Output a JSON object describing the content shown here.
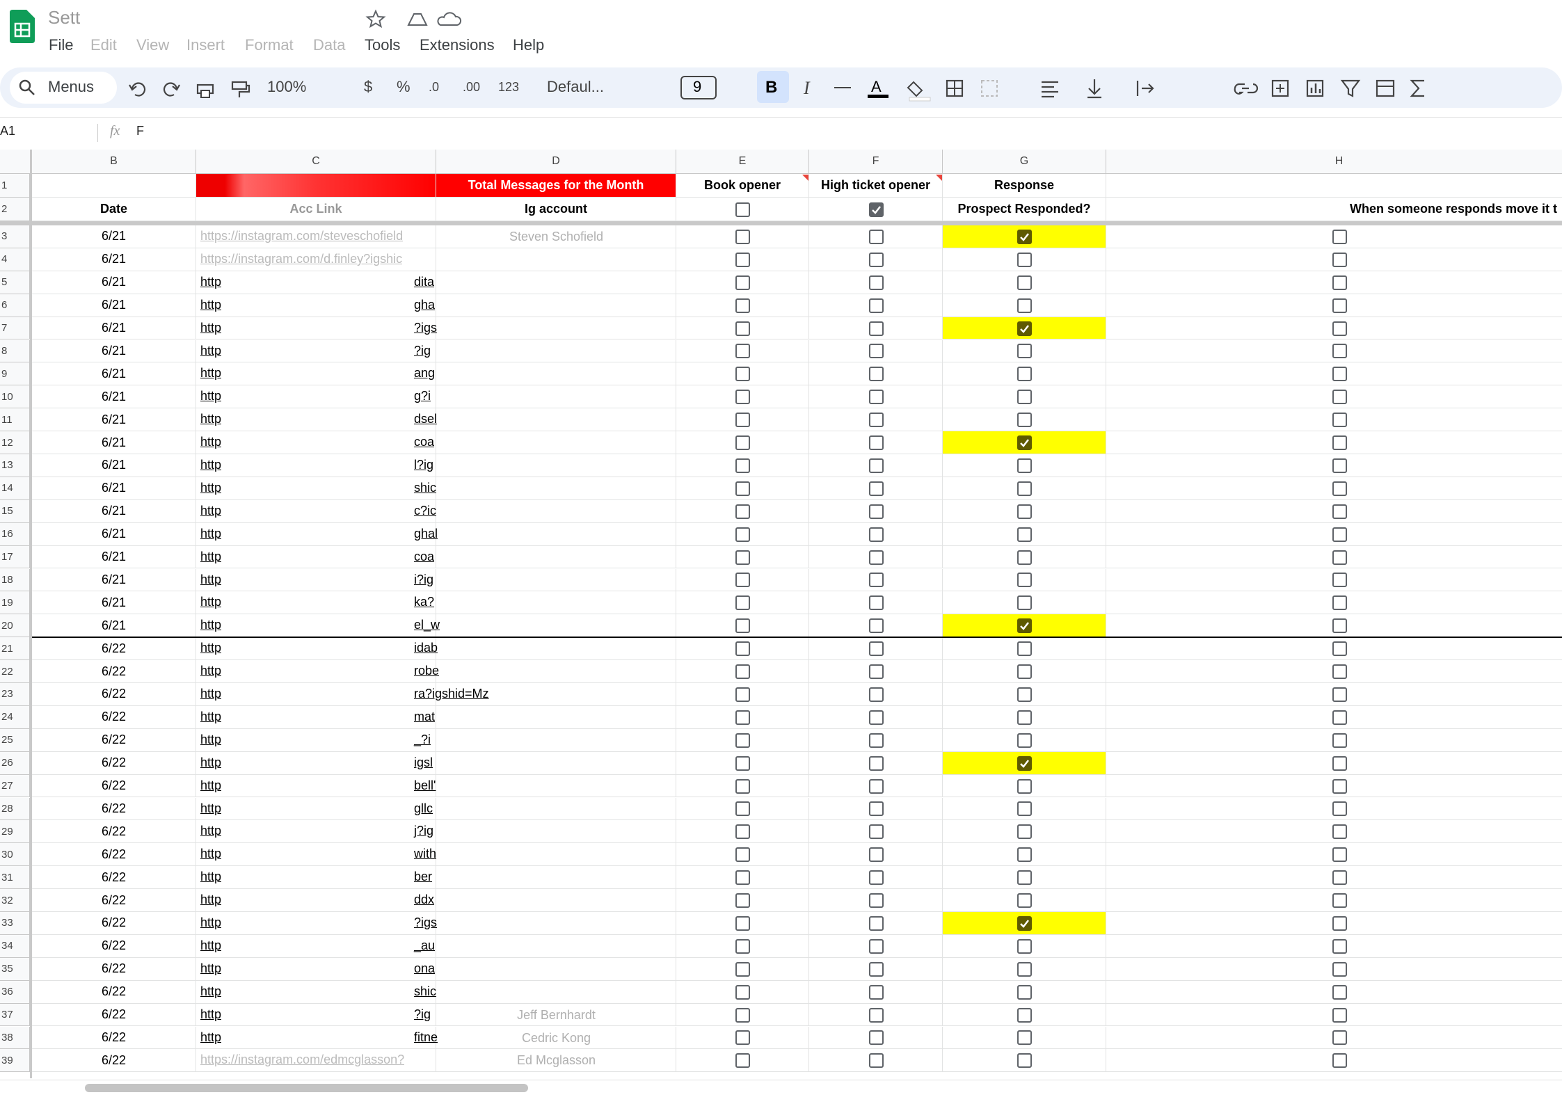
{
  "header": {
    "title": "Sett",
    "menus": [
      "File",
      "Edit",
      "View",
      "Insert",
      "Format",
      "Data",
      "Tools",
      "Extensions",
      "Help"
    ]
  },
  "toolbar": {
    "search": "Menus",
    "zoom": "100%",
    "currency": "$",
    "percent": "%",
    "decrease_decimal": ".0",
    "increase_decimal": ".00",
    "number_format": "123",
    "font": "Defaul...",
    "font_size": "9",
    "bold": "B",
    "italic": "I",
    "text_color": "A"
  },
  "formula_bar": {
    "cell": "A1",
    "fx": "fx",
    "content": "F"
  },
  "sheet": {
    "columns": [
      "B",
      "C",
      "D",
      "E",
      "F",
      "G",
      "H"
    ],
    "row1": {
      "number": 1,
      "D": "Total Messages for the Month",
      "E": "Book opener",
      "F": "High ticket opener",
      "G": "Response"
    },
    "row2": {
      "number": 2,
      "B": "Date",
      "C": "Acc Link",
      "D": "Ig account",
      "E": false,
      "F": true,
      "G": "Prospect Responded?",
      "H": "When someone responds move it t"
    },
    "rows": [
      {
        "number": 3,
        "date": "6/21",
        "link": "https://instagram.com/steveschofield",
        "name": "Steven Schofield",
        "book": false,
        "high": false,
        "responded": true,
        "moved": false
      },
      {
        "number": 4,
        "date": "6/21",
        "link": "https://instagram.com/d.finley?igshic",
        "book": false,
        "high": false,
        "responded": false,
        "moved": false
      },
      {
        "number": 5,
        "date": "6/21",
        "link": "http",
        "link_end": "dita",
        "book": false,
        "high": false,
        "responded": false,
        "moved": false
      },
      {
        "number": 6,
        "date": "6/21",
        "link": "http",
        "link_end": "gha",
        "book": false,
        "high": false,
        "responded": false,
        "moved": false
      },
      {
        "number": 7,
        "date": "6/21",
        "link": "http",
        "link_end": "?igs",
        "book": false,
        "high": false,
        "responded": true,
        "moved": false
      },
      {
        "number": 8,
        "date": "6/21",
        "link": "http",
        "link_end": "?ig",
        "book": false,
        "high": false,
        "responded": false,
        "moved": false
      },
      {
        "number": 9,
        "date": "6/21",
        "link": "http",
        "link_end": "ang",
        "book": false,
        "high": false,
        "responded": false,
        "moved": false
      },
      {
        "number": 10,
        "date": "6/21",
        "link": "http",
        "link_end": "g?i",
        "book": false,
        "high": false,
        "responded": false,
        "moved": false
      },
      {
        "number": 11,
        "date": "6/21",
        "link": "http",
        "link_end": "dsel",
        "book": false,
        "high": false,
        "responded": false,
        "moved": false
      },
      {
        "number": 12,
        "date": "6/21",
        "link": "http",
        "link_end": "coa",
        "book": false,
        "high": false,
        "responded": true,
        "moved": false
      },
      {
        "number": 13,
        "date": "6/21",
        "link": "http",
        "link_end": "l?ig",
        "book": false,
        "high": false,
        "responded": false,
        "moved": false
      },
      {
        "number": 14,
        "date": "6/21",
        "link": "http",
        "link_end": "shic",
        "book": false,
        "high": false,
        "responded": false,
        "moved": false
      },
      {
        "number": 15,
        "date": "6/21",
        "link": "http",
        "link_end": "c?ic",
        "book": false,
        "high": false,
        "responded": false,
        "moved": false
      },
      {
        "number": 16,
        "date": "6/21",
        "link": "http",
        "link_end": "ghal",
        "book": false,
        "high": false,
        "responded": false,
        "moved": false
      },
      {
        "number": 17,
        "date": "6/21",
        "link": "http",
        "link_end": "coa",
        "book": false,
        "high": false,
        "responded": false,
        "moved": false
      },
      {
        "number": 18,
        "date": "6/21",
        "link": "http",
        "link_end": "i?ig",
        "book": false,
        "high": false,
        "responded": false,
        "moved": false
      },
      {
        "number": 19,
        "date": "6/21",
        "link": "http",
        "link_end": "ka?",
        "book": false,
        "high": false,
        "responded": false,
        "moved": false
      },
      {
        "number": 20,
        "date": "6/21",
        "link": "http",
        "link_end": "el_w",
        "book": false,
        "high": false,
        "responded": true,
        "moved": false
      },
      {
        "number": 21,
        "date": "6/22",
        "link": "http",
        "link_end": "idab",
        "book": false,
        "high": false,
        "responded": false,
        "moved": false
      },
      {
        "number": 22,
        "date": "6/22",
        "link": "http",
        "link_end": "robe",
        "book": false,
        "high": false,
        "responded": false,
        "moved": false
      },
      {
        "number": 23,
        "date": "6/22",
        "link": "http",
        "link_end": "ra?igshid=Mz",
        "book": false,
        "high": false,
        "responded": false,
        "moved": false
      },
      {
        "number": 24,
        "date": "6/22",
        "link": "http",
        "link_end": "mat",
        "book": false,
        "high": false,
        "responded": false,
        "moved": false
      },
      {
        "number": 25,
        "date": "6/22",
        "link": "http",
        "link_end": "_?i",
        "book": false,
        "high": false,
        "responded": false,
        "moved": false
      },
      {
        "number": 26,
        "date": "6/22",
        "link": "http",
        "link_end": "igsl",
        "book": false,
        "high": false,
        "responded": true,
        "moved": false
      },
      {
        "number": 27,
        "date": "6/22",
        "link": "http",
        "link_end": "bell'",
        "book": false,
        "high": false,
        "responded": false,
        "moved": false
      },
      {
        "number": 28,
        "date": "6/22",
        "link": "http",
        "link_end": "gllc",
        "book": false,
        "high": false,
        "responded": false,
        "moved": false
      },
      {
        "number": 29,
        "date": "6/22",
        "link": "http",
        "link_end": "j?ig",
        "book": false,
        "high": false,
        "responded": false,
        "moved": false
      },
      {
        "number": 30,
        "date": "6/22",
        "link": "http",
        "link_end": "with",
        "book": false,
        "high": false,
        "responded": false,
        "moved": false
      },
      {
        "number": 31,
        "date": "6/22",
        "link": "http",
        "link_end": "ber",
        "book": false,
        "high": false,
        "responded": false,
        "moved": false
      },
      {
        "number": 32,
        "date": "6/22",
        "link": "http",
        "link_end": "ddx",
        "book": false,
        "high": false,
        "responded": false,
        "moved": false
      },
      {
        "number": 33,
        "date": "6/22",
        "link": "http",
        "link_end": "?igs",
        "book": false,
        "high": false,
        "responded": true,
        "moved": false
      },
      {
        "number": 34,
        "date": "6/22",
        "link": "http",
        "link_end": "_au",
        "book": false,
        "high": false,
        "responded": false,
        "moved": false
      },
      {
        "number": 35,
        "date": "6/22",
        "link": "http",
        "link_end": "ona",
        "book": false,
        "high": false,
        "responded": false,
        "moved": false
      },
      {
        "number": 36,
        "date": "6/22",
        "link": "http",
        "link_end": "shic",
        "book": false,
        "high": false,
        "responded": false,
        "moved": false
      },
      {
        "number": 37,
        "date": "6/22",
        "link": "http",
        "link_end": "?ig",
        "name": "Jeff Bernhardt",
        "book": false,
        "high": false,
        "responded": false,
        "moved": false
      },
      {
        "number": 38,
        "date": "6/22",
        "link": "http",
        "link_end": "fitne",
        "name": "Cedric Kong",
        "book": false,
        "high": false,
        "responded": false,
        "moved": false
      },
      {
        "number": 39,
        "date": "6/22",
        "link": "https://instagram.com/edmcglasson?",
        "name": "Ed Mcglasson",
        "book": false,
        "high": false,
        "responded": false,
        "moved": false
      }
    ]
  }
}
